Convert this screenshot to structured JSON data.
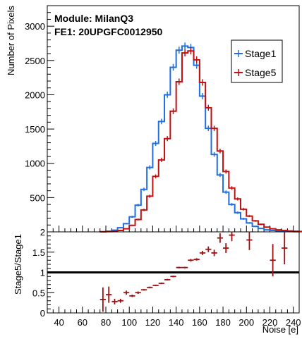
{
  "chart_data": {
    "type": "histogram-ratio",
    "annotations": [
      "Module: MilanQ3",
      "FE1: 20UPGFC0012950"
    ],
    "xlabel": "Noise [e]",
    "xlim": [
      30,
      245
    ],
    "x_ticks": [
      40,
      60,
      80,
      100,
      120,
      140,
      160,
      180,
      200,
      220,
      240
    ],
    "bin_width": 5,
    "top": {
      "ylabel": "Number of Pixels",
      "ylim": [
        0,
        3300
      ],
      "y_ticks": [
        500,
        1000,
        1500,
        2000,
        2500,
        3000
      ],
      "legend_position": "top-right",
      "series": [
        {
          "name": "Stage1",
          "color": "#1f6fe0",
          "bin_start": 75,
          "values": [
            3,
            10,
            25,
            60,
            120,
            220,
            390,
            620,
            940,
            1290,
            1610,
            2000,
            2400,
            2650,
            2710,
            2690,
            2430,
            1980,
            1510,
            1130,
            830,
            580,
            400,
            280,
            190,
            130,
            80,
            50,
            30,
            20,
            12,
            8,
            5,
            3,
            2,
            1
          ]
        },
        {
          "name": "Stage5",
          "color": "#c01010",
          "bin_start": 75,
          "values": [
            1,
            4,
            9,
            20,
            45,
            95,
            180,
            320,
            520,
            810,
            1050,
            1360,
            1760,
            2190,
            2610,
            2640,
            2510,
            2180,
            1810,
            1510,
            1180,
            880,
            640,
            480,
            330,
            230,
            160,
            110,
            70,
            45,
            30,
            20,
            14,
            9,
            6,
            4,
            3
          ]
        }
      ]
    },
    "ratio": {
      "ylabel": "Stage5/Stage1",
      "ylim": [
        0,
        2
      ],
      "y_ticks": [
        0,
        0.5,
        1,
        1.5,
        2
      ],
      "reference_line": 1,
      "points": [
        {
          "x": 77.5,
          "y": 0.33,
          "err": 0.3
        },
        {
          "x": 82.5,
          "y": 0.45,
          "err": 0.2
        },
        {
          "x": 87.5,
          "y": 0.28,
          "err": 0.07
        },
        {
          "x": 92.5,
          "y": 0.3,
          "err": 0.05
        },
        {
          "x": 97.5,
          "y": 0.5,
          "err": 0.05
        },
        {
          "x": 102.5,
          "y": 0.42,
          "err": 0.03
        },
        {
          "x": 107.5,
          "y": 0.5,
          "err": 0.03
        },
        {
          "x": 112.5,
          "y": 0.57,
          "err": 0.02
        },
        {
          "x": 117.5,
          "y": 0.63,
          "err": 0.02
        },
        {
          "x": 122.5,
          "y": 0.68,
          "err": 0.02
        },
        {
          "x": 127.5,
          "y": 0.73,
          "err": 0.02
        },
        {
          "x": 132.5,
          "y": 0.82,
          "err": 0.02
        },
        {
          "x": 137.5,
          "y": 0.9,
          "err": 0.02
        },
        {
          "x": 142.5,
          "y": 1.12,
          "err": 0.02
        },
        {
          "x": 147.5,
          "y": 1.12,
          "err": 0.02
        },
        {
          "x": 152.5,
          "y": 1.3,
          "err": 0.03
        },
        {
          "x": 157.5,
          "y": 1.32,
          "err": 0.03
        },
        {
          "x": 162.5,
          "y": 1.48,
          "err": 0.05
        },
        {
          "x": 167.5,
          "y": 1.57,
          "err": 0.07
        },
        {
          "x": 172.5,
          "y": 1.48,
          "err": 0.08
        },
        {
          "x": 177.5,
          "y": 1.85,
          "err": 0.12
        },
        {
          "x": 182.5,
          "y": 1.6,
          "err": 0.12
        },
        {
          "x": 187.5,
          "y": 1.92,
          "err": 0.15
        },
        {
          "x": 202.5,
          "y": 1.8,
          "err": 0.25
        },
        {
          "x": 222.5,
          "y": 1.3,
          "err": 0.4
        },
        {
          "x": 232.5,
          "y": 1.6,
          "err": 0.4
        }
      ]
    }
  }
}
